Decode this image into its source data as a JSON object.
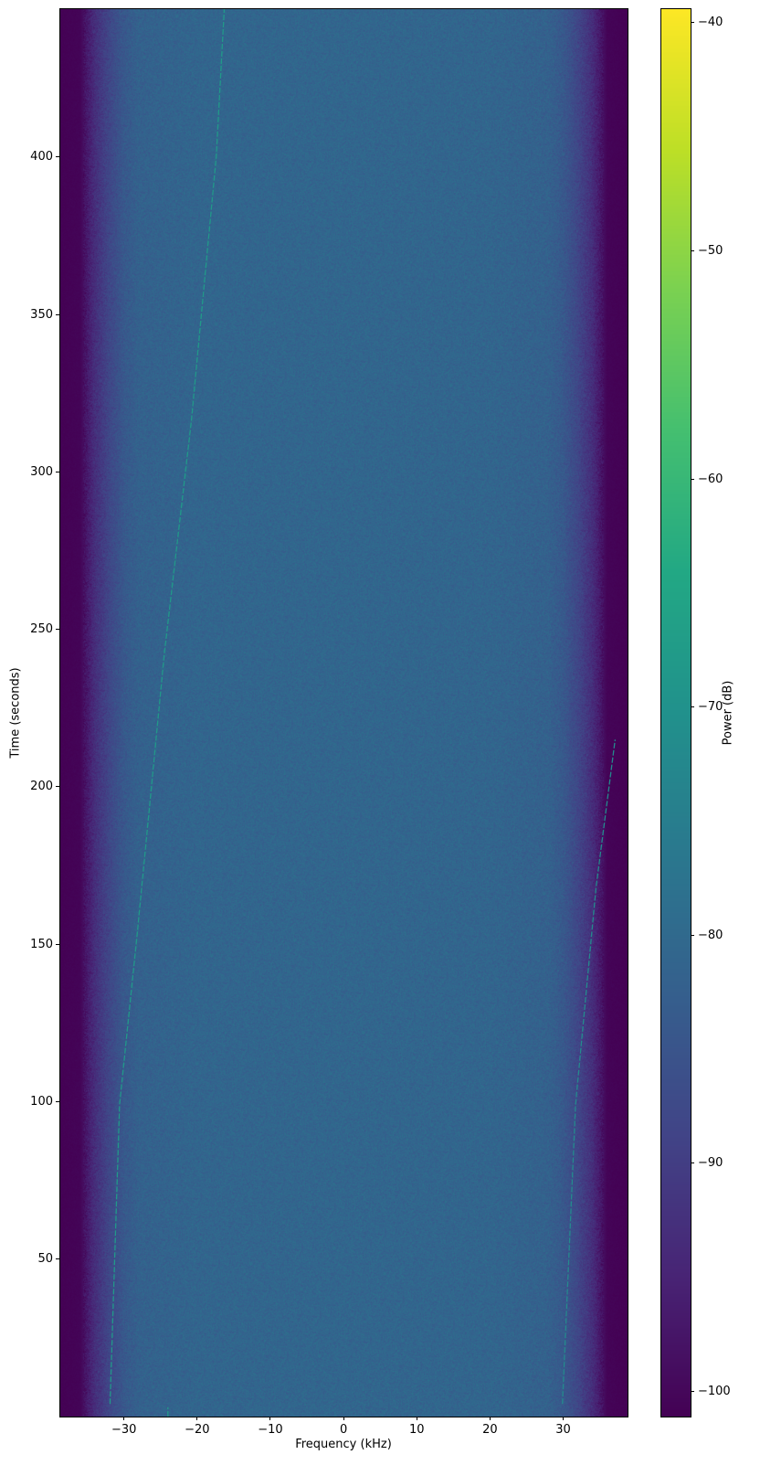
{
  "chart_data": {
    "type": "heatmap",
    "subtype": "spectrogram",
    "title": "",
    "xlabel": "Frequency (kHz)",
    "ylabel": "Time (seconds)",
    "xlim": [
      -38.7,
      38.8
    ],
    "ylim": [
      0,
      447
    ],
    "xticks": [
      -30,
      -20,
      -10,
      0,
      10,
      20,
      30
    ],
    "xtick_labels": [
      "−30",
      "−20",
      "−10",
      "0",
      "10",
      "20",
      "30"
    ],
    "yticks": [
      50,
      100,
      150,
      200,
      250,
      300,
      350,
      400
    ],
    "ytick_labels": [
      "50",
      "100",
      "150",
      "200",
      "250",
      "300",
      "350",
      "400"
    ],
    "grid": false,
    "colormap": "viridis",
    "colorbar": {
      "label": "Power (dB)",
      "range": [
        -101.1,
        -39.4
      ],
      "ticks": [
        -100,
        -90,
        -80,
        -70,
        -60,
        -50,
        -40
      ],
      "tick_labels": [
        "−100",
        "−90",
        "−80",
        "−70",
        "−60",
        "−50",
        "−40"
      ],
      "position": "right"
    },
    "noise_floor_profile_db": [
      [
        -38.7,
        -101
      ],
      [
        -36,
        -100.5
      ],
      [
        -34,
        -93
      ],
      [
        -32,
        -88
      ],
      [
        -30,
        -84
      ],
      [
        -28,
        -82
      ],
      [
        -20,
        -81
      ],
      [
        0,
        -80.8
      ],
      [
        20,
        -81
      ],
      [
        28,
        -82
      ],
      [
        30,
        -84
      ],
      [
        32,
        -88
      ],
      [
        34,
        -93
      ],
      [
        36,
        -100.5
      ],
      [
        38.8,
        -101
      ]
    ],
    "traces": [
      {
        "power_db": -68,
        "points": [
          [
            -31.9,
            4
          ],
          [
            -30.6,
            99
          ],
          [
            -28.2,
            153
          ],
          [
            -24.5,
            242
          ],
          [
            -20.8,
            316
          ],
          [
            -17.4,
            400
          ],
          [
            -16.3,
            447
          ]
        ]
      },
      {
        "power_db": -72,
        "points": [
          [
            29.9,
            4
          ],
          [
            31.7,
            99
          ],
          [
            34.5,
            168
          ],
          [
            37.1,
            215
          ]
        ]
      },
      {
        "power_db": -68,
        "points": [
          [
            -24.0,
            0
          ],
          [
            -24.0,
            3
          ]
        ]
      }
    ]
  }
}
